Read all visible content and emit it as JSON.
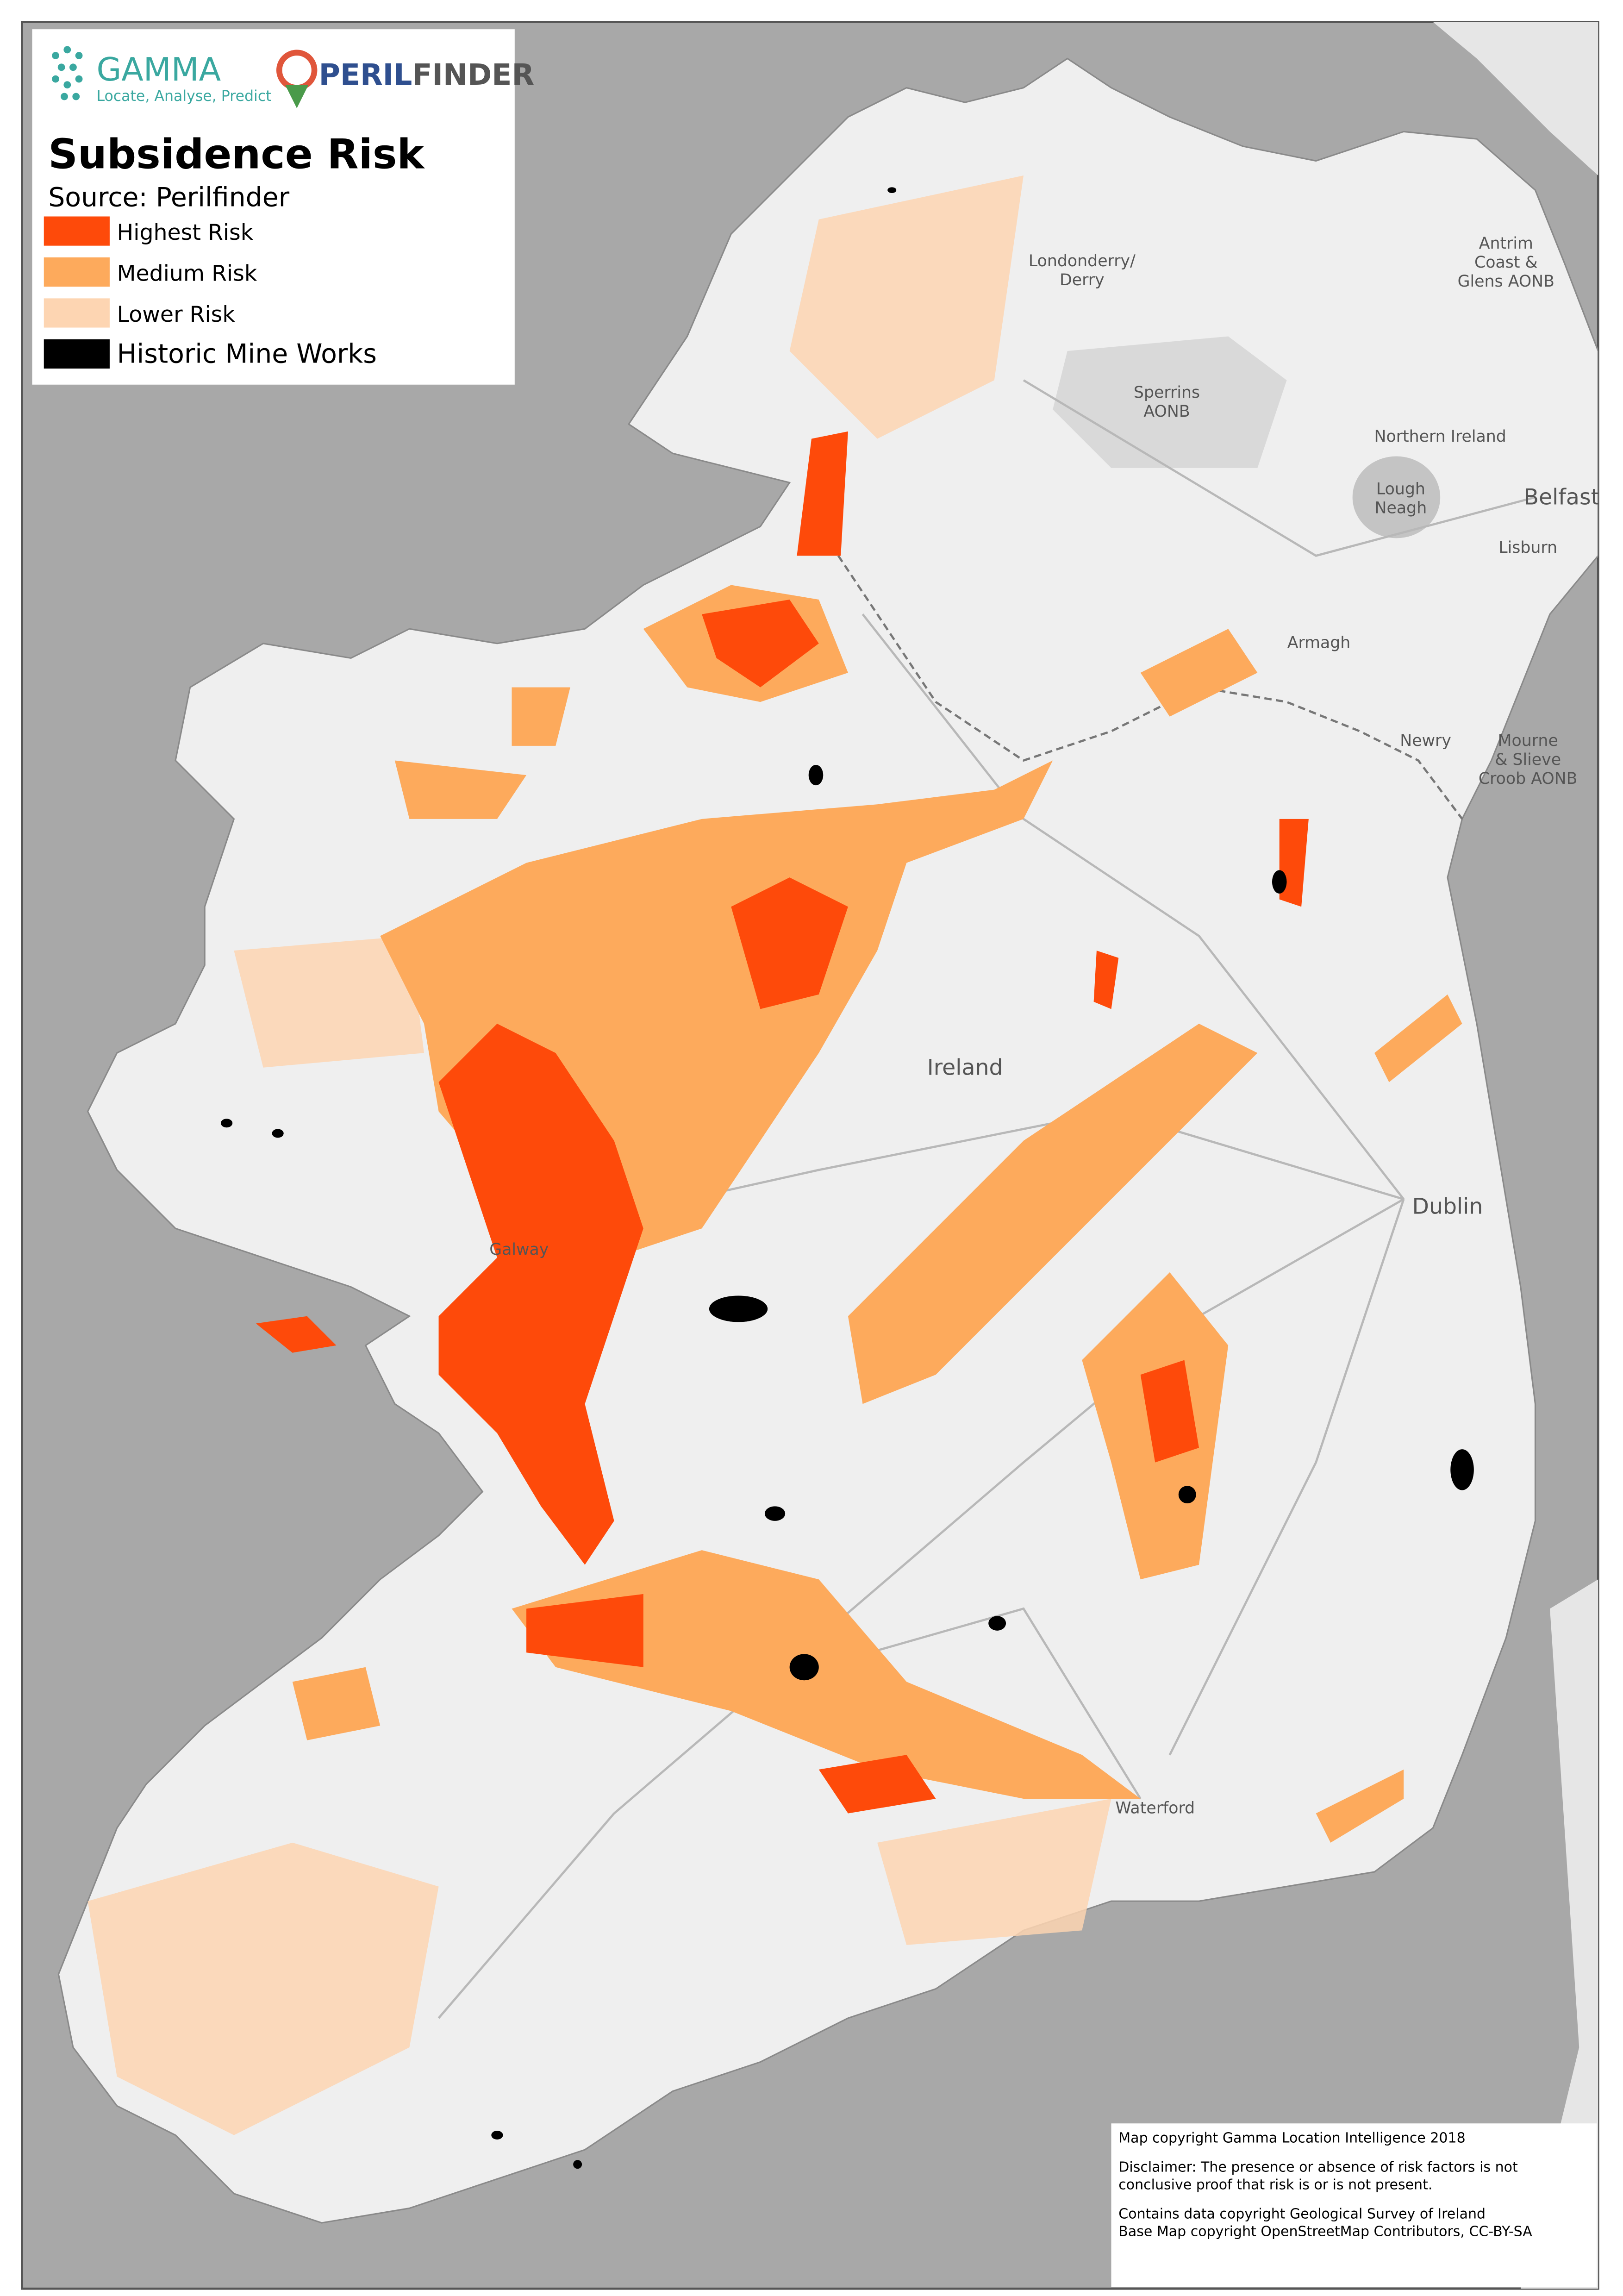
{
  "header": {
    "brand": "GAMMA",
    "tagline": "Locate, Analyse, Predict",
    "product": [
      "PERIL",
      "FINDER"
    ]
  },
  "legend": {
    "title": "Subsidence Risk",
    "source": "Source: Perilfinder",
    "items": [
      {
        "label": "Highest Risk",
        "color": "#fe4a0a"
      },
      {
        "label": "Medium Risk",
        "color": "#fdaa5c"
      },
      {
        "label": "Lower Risk",
        "color": "#fdd5b2"
      },
      {
        "label": "Historic Mine Works",
        "color": "#000000"
      }
    ]
  },
  "place_labels": [
    {
      "lines": [
        "Londonderry/",
        "Derry"
      ]
    },
    {
      "lines": [
        "Antrim",
        "Coast &",
        "Glens AONB"
      ]
    },
    {
      "lines": [
        "Sperrins",
        "AONB"
      ]
    },
    {
      "lines": [
        "Northern Ireland"
      ]
    },
    {
      "lines": [
        "Lough",
        "Neagh"
      ]
    },
    {
      "lines": [
        "Belfast"
      ]
    },
    {
      "lines": [
        "Lisburn"
      ]
    },
    {
      "lines": [
        "Armagh"
      ]
    },
    {
      "lines": [
        "Newry"
      ]
    },
    {
      "lines": [
        "Mourne",
        "& Slieve",
        "Croob AONB"
      ]
    },
    {
      "lines": [
        "Ireland"
      ]
    },
    {
      "lines": [
        "Dublin"
      ]
    },
    {
      "lines": [
        "Galway"
      ]
    },
    {
      "lines": [
        "Waterford"
      ]
    }
  ],
  "notes": [
    {
      "lines": [
        "Map copyright Gamma Location Intelligence 2018"
      ]
    },
    {
      "lines": [
        "Disclaimer: The presence or absence of risk factors is not",
        "conclusive proof that risk is or is not present."
      ]
    },
    {
      "lines": [
        "Contains data copyright Geological Survey of Ireland",
        "Base Map copyright OpenStreetMap Contributors, CC-BY-SA"
      ]
    }
  ]
}
